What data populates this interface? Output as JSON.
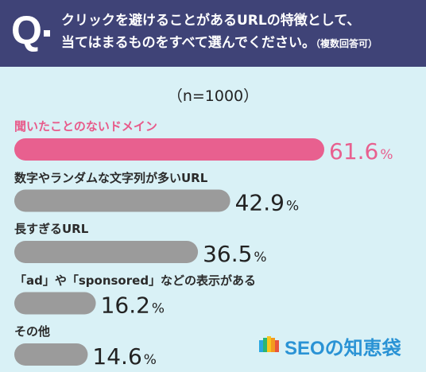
{
  "header": {
    "q_letter": "Q",
    "question_line1": "クリックを避けることがあるURLの特徴として、",
    "question_line2": "当てはまるものをすべて選んでください。",
    "question_note": "（複数回答可）"
  },
  "sample_size": "（n=1000）",
  "colors": {
    "header_bg": "#3f4377",
    "background": "#d9f1f6",
    "highlight": "#e8608f",
    "bar": "#9b9b9b"
  },
  "chart_data": {
    "type": "bar",
    "orientation": "horizontal",
    "categories": [
      "聞いたことのないドメイン",
      "数字やランダムな文字列が多いURL",
      "長すぎるURL",
      "「ad」や「sponsored」などの表示がある",
      "その他"
    ],
    "values": [
      61.6,
      42.9,
      36.5,
      16.2,
      14.6
    ],
    "value_labels": [
      "61.6",
      "42.9",
      "36.5",
      "16.2",
      "14.6"
    ],
    "unit": "%",
    "highlight_index": 0
  },
  "brand": {
    "name": "SEOの知恵袋"
  }
}
